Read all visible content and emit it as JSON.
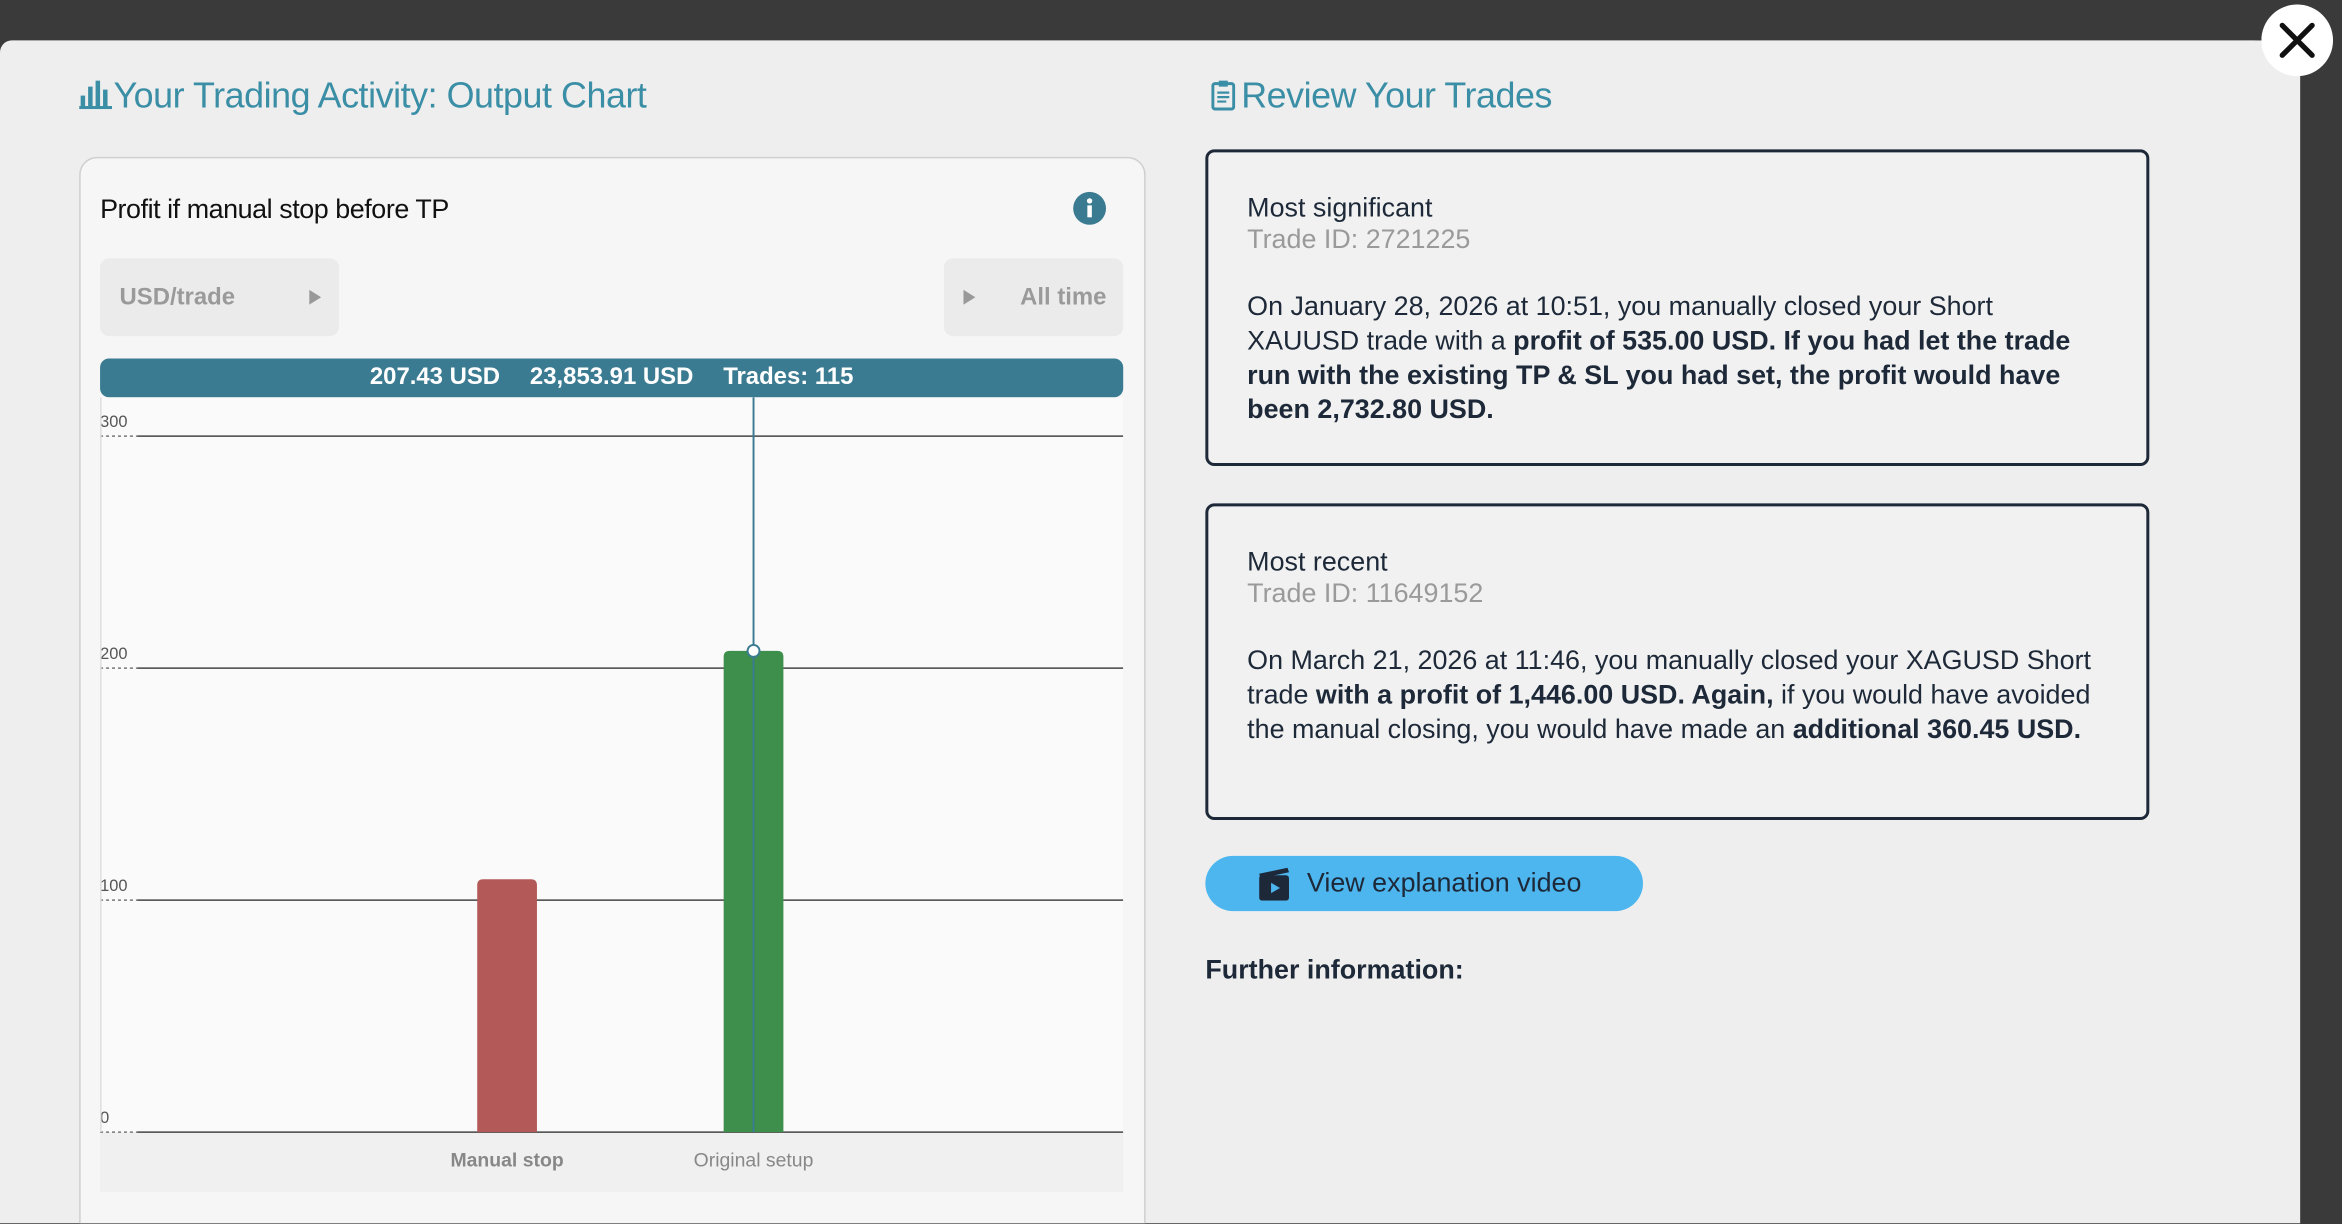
{
  "left": {
    "title": "Your Trading Activity: Output Chart"
  },
  "chart_data": {
    "type": "bar",
    "title": "Profit if manual stop before TP",
    "unit_selector": "USD/trade",
    "period_selector": "All time",
    "tooltip": [
      "207.43 USD",
      "23,853.91 USD",
      "Trades: 115"
    ],
    "categories": [
      "Manual stop",
      "Original setup"
    ],
    "values": [
      109,
      207.43
    ],
    "colors": [
      "#b35a58",
      "#3e8f4c"
    ],
    "ylim": [
      0,
      300
    ],
    "yticks": [
      0,
      100,
      200,
      300
    ],
    "grid": true,
    "crosshair_index": 1
  },
  "review": {
    "title": "Review Your Trades",
    "cards": [
      {
        "heading": "Most significant",
        "trade_id": "Trade ID: 2721225",
        "paragraph": [
          {
            "text": "On January 28, 2026 at 10:51, you manually closed your Short XAUUSD trade with a ",
            "bold": false
          },
          {
            "text": "profit of 535.00 USD. If you had let the trade run with the existing TP & SL you had set, the profit would have been 2,732.80 USD.",
            "bold": true
          }
        ]
      },
      {
        "heading": "Most recent",
        "trade_id": "Trade ID: 11649152",
        "paragraph": [
          {
            "text": "On March 21, 2026 at 11:46, you manually closed your XAGUSD Short trade ",
            "bold": false
          },
          {
            "text": "with a profit of 1,446.00 USD. Again,",
            "bold": true
          },
          {
            "text": " if you would have avoided the manual closing, you would have made an ",
            "bold": false
          },
          {
            "text": "additional 360.45 USD.",
            "bold": true
          }
        ]
      }
    ],
    "button": "View explanation video",
    "further": "Further information:"
  }
}
